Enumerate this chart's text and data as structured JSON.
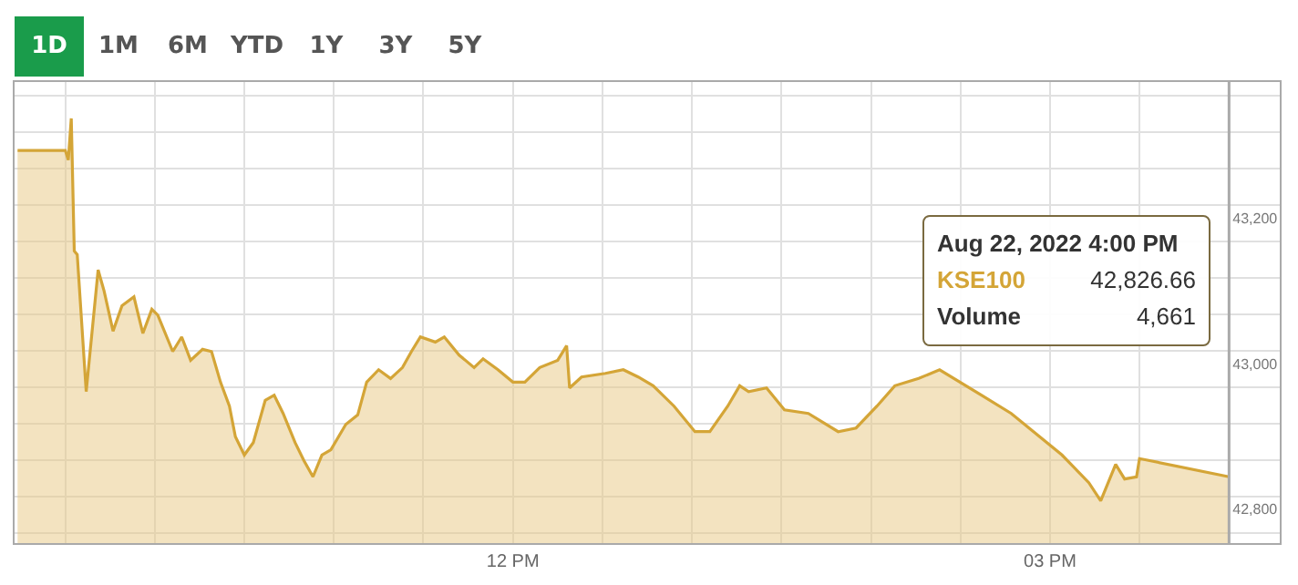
{
  "chart_data": {
    "type": "area",
    "x": [
      "2022-08-22T09:14",
      "2022-08-22T09:30",
      "2022-08-22T09:31",
      "2022-08-22T09:32",
      "2022-08-22T09:33",
      "2022-08-22T09:34",
      "2022-08-22T09:37",
      "2022-08-22T09:41",
      "2022-08-22T09:43",
      "2022-08-22T09:46",
      "2022-08-22T09:49",
      "2022-08-22T09:53",
      "2022-08-22T09:54",
      "2022-08-22T09:56",
      "2022-08-22T09:59",
      "2022-08-22T10:01",
      "2022-08-22T10:06",
      "2022-08-22T10:09",
      "2022-08-22T10:12",
      "2022-08-22T10:16",
      "2022-08-22T10:19",
      "2022-08-22T10:22",
      "2022-08-22T10:25",
      "2022-08-22T10:27",
      "2022-08-22T10:30",
      "2022-08-22T10:33",
      "2022-08-22T10:37",
      "2022-08-22T10:40",
      "2022-08-22T10:43",
      "2022-08-22T10:47",
      "2022-08-22T10:50",
      "2022-08-22T10:53",
      "2022-08-22T10:56",
      "2022-08-22T10:59",
      "2022-08-22T11:04",
      "2022-08-22T11:08",
      "2022-08-22T11:11",
      "2022-08-22T11:15",
      "2022-08-22T11:19",
      "2022-08-22T11:23",
      "2022-08-22T11:26",
      "2022-08-22T11:29",
      "2022-08-22T11:34",
      "2022-08-22T11:37",
      "2022-08-22T11:42",
      "2022-08-22T11:47",
      "2022-08-22T11:50",
      "2022-08-22T11:55",
      "2022-08-22T12:00",
      "2022-08-22T12:04",
      "2022-08-22T12:09",
      "2022-08-22T12:15",
      "2022-08-22T12:18",
      "2022-08-22T12:19",
      "2022-08-22T12:23",
      "2022-08-22T12:31",
      "2022-08-22T12:37",
      "2022-08-22T12:42",
      "2022-08-22T12:47",
      "2022-08-22T12:54",
      "2022-08-22T13:01",
      "2022-08-22T13:06",
      "2022-08-22T13:12",
      "2022-08-22T13:16",
      "2022-08-22T13:19",
      "2022-08-22T13:25",
      "2022-08-22T13:31",
      "2022-08-22T13:39",
      "2022-08-22T13:49",
      "2022-08-22T13:55",
      "2022-08-22T14:02",
      "2022-08-22T14:08",
      "2022-08-22T14:16",
      "2022-08-22T14:23",
      "2022-08-22T14:37",
      "2022-08-22T14:47",
      "2022-08-22T15:04",
      "2022-08-22T15:13",
      "2022-08-22T15:17",
      "2022-08-22T15:22",
      "2022-08-22T15:25",
      "2022-08-22T15:29",
      "2022-08-22T15:30",
      "2022-08-22T16:00"
    ],
    "series": [
      {
        "name": "KSE100",
        "color": "#d4a537",
        "values": [
          43275,
          43275,
          43262,
          43319,
          43137,
          43132,
          42944,
          43111,
          43082,
          43027,
          43062,
          43074,
          43057,
          43024,
          43057,
          43049,
          42999,
          43019,
          42987,
          43002,
          42999,
          42957,
          42924,
          42882,
          42857,
          42874,
          42932,
          42939,
          42914,
          42874,
          42849,
          42827,
          42857,
          42864,
          42899,
          42912,
          42957,
          42974,
          42962,
          42977,
          42999,
          43019,
          43012,
          43019,
          42994,
          42977,
          42989,
          42974,
          42957,
          42957,
          42977,
          42987,
          43007,
          42949,
          42964,
          42969,
          42974,
          42964,
          42952,
          42924,
          42889,
          42889,
          42924,
          42952,
          42944,
          42949,
          42919,
          42914,
          42889,
          42894,
          42924,
          42952,
          42962,
          42974,
          42939,
          42914,
          42857,
          42819,
          42794,
          42844,
          42824,
          42827,
          42852,
          42827
        ]
      }
    ],
    "xlim": [
      "2022-08-22T09:13",
      "2022-08-22T16:17"
    ],
    "xticks": [
      {
        "value": "2022-08-22T09:30",
        "label": null
      },
      {
        "value": "2022-08-22T10:00",
        "label": null
      },
      {
        "value": "2022-08-22T10:30",
        "label": null
      },
      {
        "value": "2022-08-22T11:00",
        "label": null
      },
      {
        "value": "2022-08-22T11:30",
        "label": null
      },
      {
        "value": "2022-08-22T12:00",
        "label": "12 PM"
      },
      {
        "value": "2022-08-22T12:30",
        "label": null
      },
      {
        "value": "2022-08-22T13:00",
        "label": null
      },
      {
        "value": "2022-08-22T13:30",
        "label": null
      },
      {
        "value": "2022-08-22T14:00",
        "label": null
      },
      {
        "value": "2022-08-22T14:30",
        "label": null
      },
      {
        "value": "2022-08-22T15:00",
        "label": "03 PM"
      },
      {
        "value": "2022-08-22T15:30",
        "label": null
      },
      {
        "value": "2022-08-22T16:00",
        "label": null
      }
    ],
    "ylim": [
      42736,
      43369
    ],
    "yticks": [
      {
        "value": 42750,
        "label": null
      },
      {
        "value": 42800,
        "label": "42,800"
      },
      {
        "value": 42850,
        "label": null
      },
      {
        "value": 42900,
        "label": null
      },
      {
        "value": 42950,
        "label": null
      },
      {
        "value": 43000,
        "label": "43,000"
      },
      {
        "value": 43050,
        "label": null
      },
      {
        "value": 43100,
        "label": null
      },
      {
        "value": 43150,
        "label": null
      },
      {
        "value": 43200,
        "label": "43,200"
      },
      {
        "value": 43250,
        "label": null
      },
      {
        "value": 43300,
        "label": null
      },
      {
        "value": 43350,
        "label": null
      }
    ],
    "grid": true,
    "legend": false,
    "marker": "none",
    "line_style": "solid",
    "ref_lines": [
      {
        "axis": "x",
        "value": "2022-08-22T16:00",
        "color": "#aaaaaa"
      }
    ],
    "annotations": [
      "1D",
      "1M",
      "6M",
      "YTD",
      "1Y",
      "3Y",
      "5Y",
      "Aug 22, 2022 4:00 PM",
      "42,826.66",
      "Volume",
      "4,661"
    ]
  }
}
